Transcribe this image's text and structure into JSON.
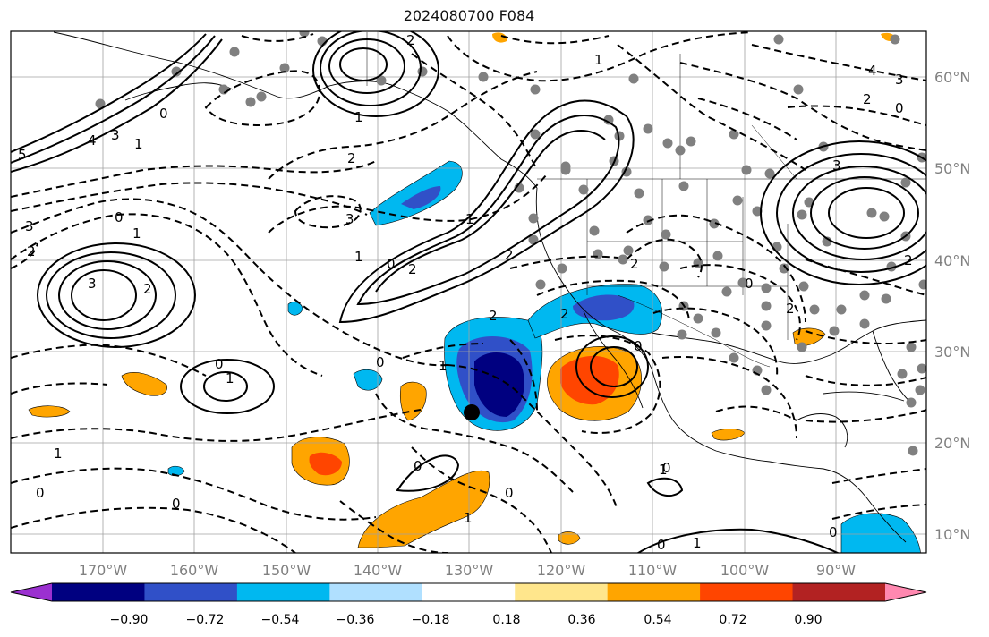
{
  "title": "2024080700 F084",
  "lon_labels": [
    "170°W",
    "160°W",
    "150°W",
    "140°W",
    "130°W",
    "120°W",
    "110°W",
    "100°W",
    "90°W"
  ],
  "lat_labels": [
    "60°N",
    "50°N",
    "40°N",
    "30°N",
    "20°N",
    "10°N"
  ],
  "colorbar": {
    "colors": [
      "#9b30d0",
      "#000080",
      "#3050c8",
      "#00b8f0",
      "#b0e0ff",
      "#ffffff",
      "#ffe68c",
      "#ffa500",
      "#ff4500",
      "#b22222",
      "#ff88b0"
    ],
    "tick_labels": [
      "−0.90",
      "−0.72",
      "−0.54",
      "−0.36",
      "−0.18",
      "0.18",
      "0.36",
      "0.54",
      "0.72",
      "0.90"
    ]
  },
  "contour_labels": [
    {
      "name": "label-2-north",
      "text": "2"
    },
    {
      "name": "label-1-north",
      "text": "1"
    },
    {
      "name": "label-3-ne",
      "text": "3"
    },
    {
      "name": "label-4-ne",
      "text": "4"
    },
    {
      "name": "label-2-ne",
      "text": "2"
    },
    {
      "name": "label-0-ne",
      "text": "0"
    },
    {
      "name": "label-4-nw",
      "text": "4"
    },
    {
      "name": "label-3-nw",
      "text": "3"
    },
    {
      "name": "label-1-nw",
      "text": "1"
    },
    {
      "name": "label-0-nw",
      "text": "0"
    },
    {
      "name": "label-5-nw",
      "text": "5"
    },
    {
      "name": "label-3-west",
      "text": "3"
    },
    {
      "name": "label-2-west",
      "text": "2"
    },
    {
      "name": "label-0-west",
      "text": "0"
    },
    {
      "name": "label-1-west",
      "text": "1"
    },
    {
      "name": "label-3-low-west",
      "text": "3"
    },
    {
      "name": "label-2-low-west",
      "text": "2"
    },
    {
      "name": "label-2-mid",
      "text": "2"
    },
    {
      "name": "label-3-mid",
      "text": "3"
    },
    {
      "name": "label-1-mid",
      "text": "1"
    },
    {
      "name": "label-0-mid",
      "text": "0"
    },
    {
      "name": "label-2-ridge",
      "text": "2"
    },
    {
      "name": "label-1-ridge",
      "text": "1"
    },
    {
      "name": "label-2-ridge-b",
      "text": "2"
    },
    {
      "name": "label-2-east",
      "text": "2"
    },
    {
      "name": "label-2-sw",
      "text": "2"
    },
    {
      "name": "label-0-low",
      "text": "0"
    },
    {
      "name": "label-1-low",
      "text": "1"
    },
    {
      "name": "label-2-low",
      "text": "2"
    },
    {
      "name": "label-0-mexico",
      "text": "0"
    },
    {
      "name": "label-0-gulf",
      "text": "0"
    },
    {
      "name": "label-2-gulf",
      "text": "2"
    },
    {
      "name": "label-0-sw",
      "text": "0"
    },
    {
      "name": "label-1-sw",
      "text": "1"
    },
    {
      "name": "label-0-south",
      "text": "0"
    },
    {
      "name": "label-0-south-b",
      "text": "0"
    },
    {
      "name": "label-1-south",
      "text": "1"
    },
    {
      "name": "label-0-south-c",
      "text": "0"
    },
    {
      "name": "label-1-south-c",
      "text": "1"
    },
    {
      "name": "label-0-south-d",
      "text": "0"
    },
    {
      "name": "label-1-south-d",
      "text": "1"
    },
    {
      "name": "label-0-se",
      "text": "0"
    },
    {
      "name": "label-3-se",
      "text": "3"
    },
    {
      "name": "label-2-se",
      "text": "2"
    },
    {
      "name": "label-1-texas",
      "text": "1"
    },
    {
      "name": "label-0-west-b",
      "text": "0"
    },
    {
      "name": "label-1-ne-b",
      "text": "1"
    },
    {
      "name": "label-0-nw-b",
      "text": "0"
    }
  ]
}
